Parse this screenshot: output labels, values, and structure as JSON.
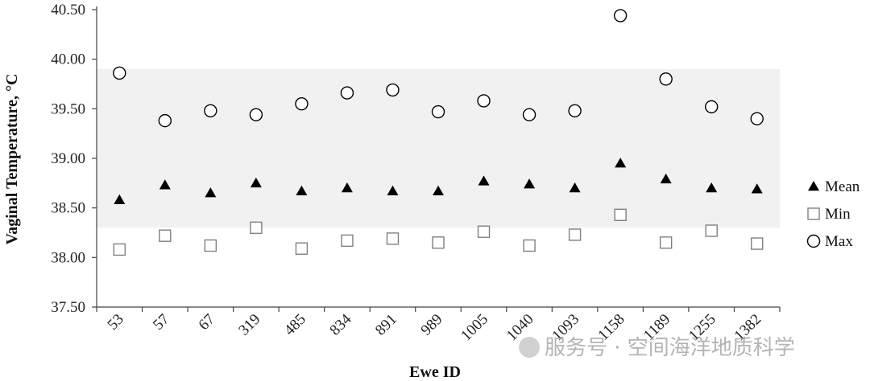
{
  "chart_data": {
    "type": "scatter",
    "xlabel": "Ewe ID",
    "ylabel": "Vaginal Temperature, °C",
    "categories": [
      "53",
      "57",
      "67",
      "319",
      "485",
      "834",
      "891",
      "989",
      "1005",
      "1040",
      "1093",
      "1158",
      "1189",
      "1255",
      "1382"
    ],
    "ylim": [
      37.5,
      40.5
    ],
    "yticks": [
      "37.50",
      "38.00",
      "38.50",
      "39.00",
      "39.50",
      "40.00",
      "40.50"
    ],
    "band": {
      "from": 38.3,
      "to": 39.9,
      "color": "#f1f1f1"
    },
    "series": [
      {
        "name": "Mean",
        "marker": "filled-triangle",
        "color": "#000000",
        "values": [
          38.58,
          38.73,
          38.65,
          38.75,
          38.67,
          38.7,
          38.67,
          38.67,
          38.77,
          38.74,
          38.7,
          38.95,
          38.79,
          38.7,
          38.69
        ]
      },
      {
        "name": "Min",
        "marker": "open-square",
        "color": "#808080",
        "values": [
          38.08,
          38.22,
          38.12,
          38.3,
          38.09,
          38.17,
          38.19,
          38.15,
          38.26,
          38.12,
          38.23,
          38.43,
          38.15,
          38.27,
          38.14
        ]
      },
      {
        "name": "Max",
        "marker": "open-circle",
        "color": "#000000",
        "values": [
          39.86,
          39.38,
          39.48,
          39.44,
          39.55,
          39.66,
          39.69,
          39.47,
          39.58,
          39.44,
          39.48,
          40.44,
          39.8,
          39.52,
          39.4
        ]
      }
    ],
    "legend_position": "right",
    "grid": false
  },
  "watermark": "服务号 · 空间海洋地质科学"
}
